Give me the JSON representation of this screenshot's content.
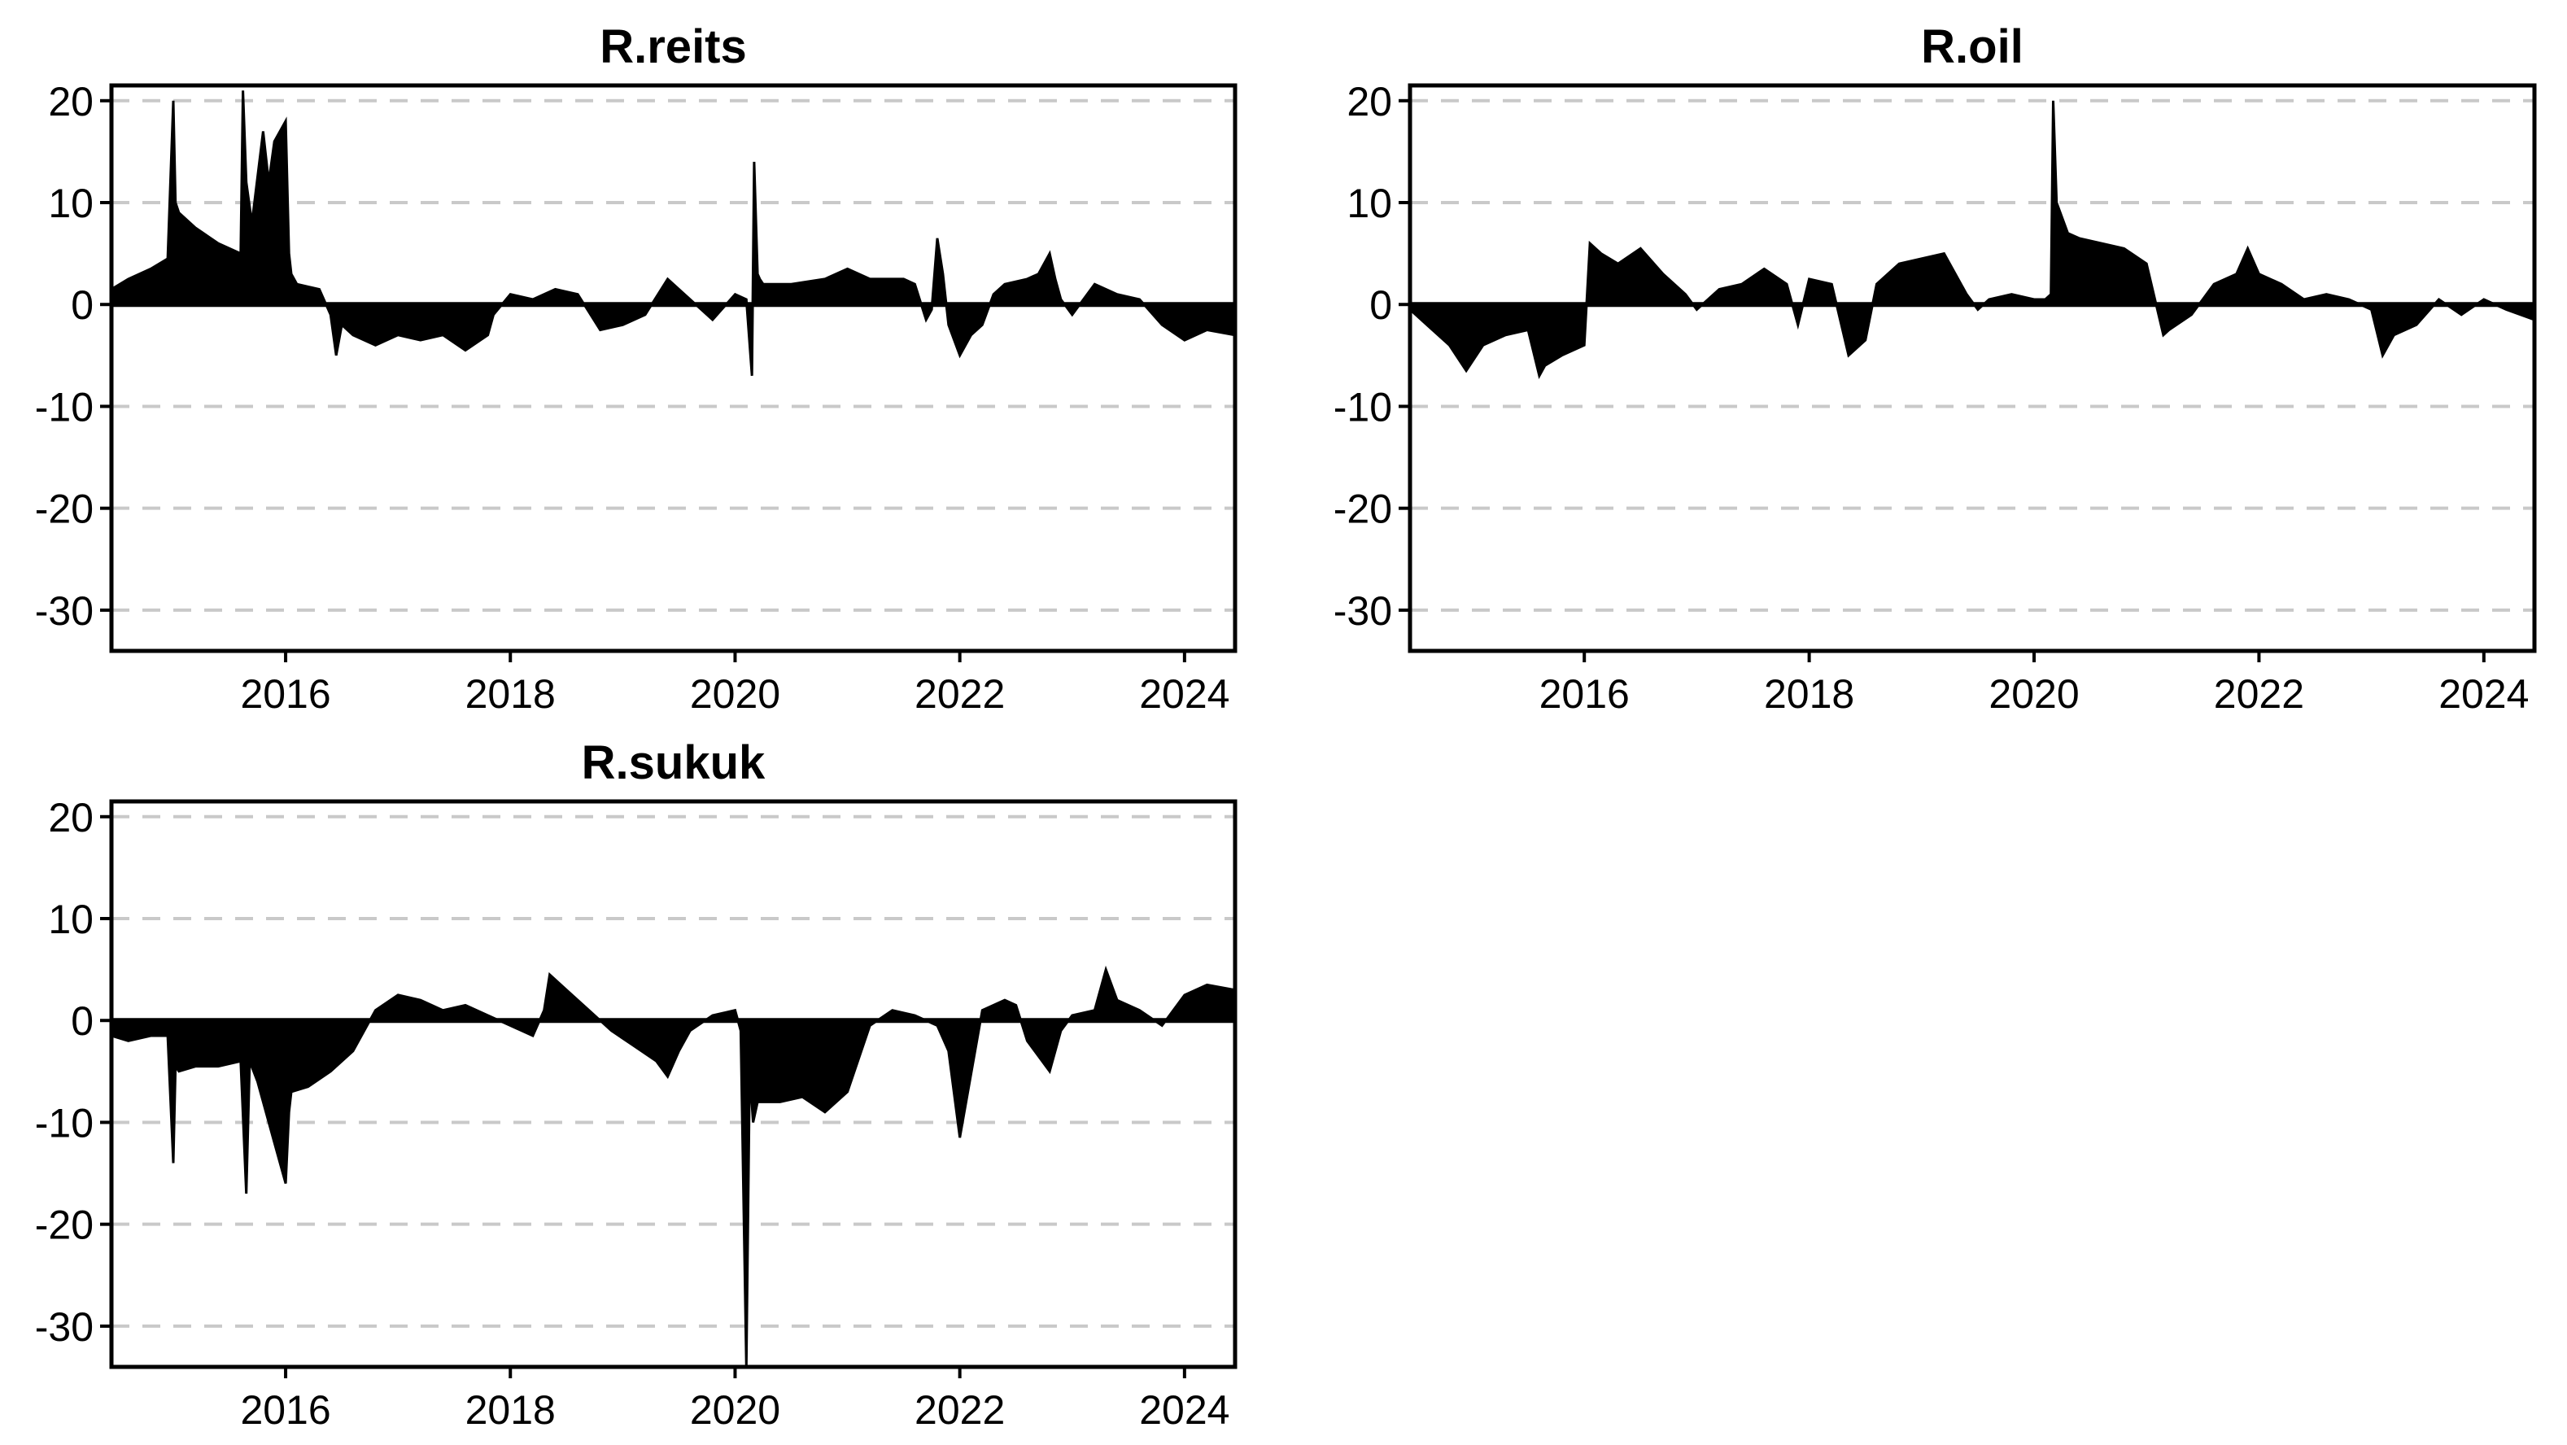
{
  "chart_data": [
    {
      "type": "area",
      "title": "R.reits",
      "xlabel": "",
      "ylabel": "",
      "xlim": [
        2014.45,
        2024.45
      ],
      "ylim": [
        -34,
        21.5
      ],
      "yticks": [
        20,
        10,
        0,
        -10,
        -20,
        -30
      ],
      "xticks": [
        2016,
        2018,
        2020,
        2022,
        2024
      ],
      "grid": true,
      "x": [
        2014.45,
        2014.6,
        2014.8,
        2014.95,
        2015.0,
        2015.02,
        2015.05,
        2015.2,
        2015.4,
        2015.6,
        2015.62,
        2015.65,
        2015.7,
        2015.8,
        2015.85,
        2015.9,
        2016.0,
        2016.03,
        2016.05,
        2016.1,
        2016.3,
        2016.4,
        2016.45,
        2016.5,
        2016.6,
        2016.8,
        2017.0,
        2017.2,
        2017.4,
        2017.6,
        2017.8,
        2017.85,
        2018.0,
        2018.2,
        2018.4,
        2018.6,
        2018.8,
        2019.0,
        2019.2,
        2019.4,
        2019.5,
        2019.6,
        2019.8,
        2020.0,
        2020.1,
        2020.15,
        2020.17,
        2020.2,
        2020.22,
        2020.25,
        2020.3,
        2020.5,
        2020.8,
        2021.0,
        2021.2,
        2021.5,
        2021.6,
        2021.7,
        2021.75,
        2021.8,
        2021.85,
        2021.9,
        2022.0,
        2022.1,
        2022.2,
        2022.3,
        2022.4,
        2022.6,
        2022.7,
        2022.8,
        2022.85,
        2022.9,
        2023.0,
        2023.2,
        2023.3,
        2023.4,
        2023.6,
        2023.8,
        2024.0,
        2024.2,
        2024.45
      ],
      "y": [
        1.5,
        2.5,
        3.5,
        4.5,
        20,
        10,
        9,
        7.5,
        6,
        5,
        21,
        12,
        8,
        17,
        12,
        16,
        18,
        5,
        3,
        2,
        1.5,
        -1,
        -5,
        -2,
        -3,
        -4,
        -3,
        -3.5,
        -3,
        -4.5,
        -3,
        -1,
        1,
        0.5,
        1.5,
        1,
        -2.5,
        -2,
        -1,
        2.5,
        1.5,
        0.5,
        -1.5,
        1,
        0.5,
        -7,
        14,
        3,
        2.5,
        2,
        2,
        2,
        2.5,
        3.5,
        2.5,
        2.5,
        2,
        -1.5,
        -0.5,
        6.5,
        3,
        -2,
        -5,
        -3,
        -2,
        1,
        2,
        2.5,
        3,
        5,
        2.5,
        0.5,
        -1,
        2,
        1.5,
        1,
        0.5,
        -2,
        -3.5,
        -2.5,
        -3
      ]
    },
    {
      "type": "area",
      "title": "R.oil",
      "xlabel": "",
      "ylabel": "",
      "xlim": [
        2014.45,
        2024.45
      ],
      "ylim": [
        -34,
        21.5
      ],
      "yticks": [
        20,
        10,
        0,
        -10,
        -20,
        -30
      ],
      "xticks": [
        2016,
        2018,
        2020,
        2022,
        2024
      ],
      "grid": true,
      "x": [
        2014.45,
        2014.6,
        2014.8,
        2014.95,
        2015.1,
        2015.3,
        2015.5,
        2015.6,
        2015.65,
        2015.8,
        2016.0,
        2016.05,
        2016.15,
        2016.3,
        2016.5,
        2016.7,
        2016.9,
        2017.0,
        2017.2,
        2017.4,
        2017.6,
        2017.8,
        2017.9,
        2018.0,
        2018.2,
        2018.35,
        2018.5,
        2018.6,
        2018.8,
        2019.0,
        2019.2,
        2019.4,
        2019.5,
        2019.6,
        2019.8,
        2020.0,
        2020.1,
        2020.15,
        2020.17,
        2020.2,
        2020.3,
        2020.4,
        2020.6,
        2020.8,
        2021.0,
        2021.15,
        2021.2,
        2021.4,
        2021.6,
        2021.8,
        2021.9,
        2022.0,
        2022.2,
        2022.4,
        2022.6,
        2022.8,
        2023.0,
        2023.1,
        2023.2,
        2023.4,
        2023.6,
        2023.8,
        2024.0,
        2024.2,
        2024.45
      ],
      "y": [
        -0.5,
        -2,
        -4,
        -6.5,
        -4,
        -3,
        -2.5,
        -7,
        -6,
        -5,
        -4,
        6,
        5,
        4,
        5.5,
        3,
        1,
        -0.5,
        1.5,
        2,
        3.5,
        2,
        -2,
        2.5,
        2,
        -5,
        -3.5,
        2,
        4,
        4.5,
        5,
        1,
        -0.5,
        0.5,
        1,
        0.5,
        0.5,
        1,
        20,
        10,
        7,
        6.5,
        6,
        5.5,
        4,
        -3,
        -2.5,
        -1,
        2,
        3,
        5.5,
        3,
        2,
        0.5,
        1,
        0.5,
        -0.5,
        -5,
        -3,
        -2,
        0.5,
        -1,
        0.5,
        -0.5,
        -1.5
      ]
    },
    {
      "type": "area",
      "title": "R.sukuk",
      "xlabel": "",
      "ylabel": "",
      "xlim": [
        2014.45,
        2024.45
      ],
      "ylim": [
        -34,
        21.5
      ],
      "yticks": [
        20,
        10,
        0,
        -10,
        -20,
        -30
      ],
      "xticks": [
        2016,
        2018,
        2020,
        2022,
        2024
      ],
      "grid": true,
      "x": [
        2014.45,
        2014.6,
        2014.8,
        2014.95,
        2015.0,
        2015.02,
        2015.05,
        2015.2,
        2015.4,
        2015.6,
        2015.65,
        2015.68,
        2015.75,
        2015.9,
        2016.0,
        2016.03,
        2016.05,
        2016.2,
        2016.4,
        2016.6,
        2016.8,
        2017.0,
        2017.2,
        2017.4,
        2017.6,
        2017.8,
        2018.0,
        2018.2,
        2018.3,
        2018.35,
        2018.5,
        2018.7,
        2018.9,
        2019.1,
        2019.3,
        2019.4,
        2019.5,
        2019.6,
        2019.8,
        2020.0,
        2020.05,
        2020.1,
        2020.13,
        2020.16,
        2020.2,
        2020.4,
        2020.6,
        2020.8,
        2021.0,
        2021.2,
        2021.4,
        2021.6,
        2021.8,
        2021.9,
        2022.0,
        2022.2,
        2022.4,
        2022.5,
        2022.6,
        2022.8,
        2022.9,
        2023.0,
        2023.2,
        2023.3,
        2023.4,
        2023.6,
        2023.8,
        2024.0,
        2024.2,
        2024.45
      ],
      "y": [
        -1.5,
        -2,
        -1.5,
        -1.5,
        -14,
        -4.5,
        -5,
        -4.5,
        -4.5,
        -4,
        -17,
        -4,
        -6,
        -12,
        -16,
        -9,
        -7,
        -6.5,
        -5,
        -3,
        1,
        2.5,
        2,
        1,
        1.5,
        0.5,
        -0.5,
        -1.5,
        1,
        4.5,
        3,
        1,
        -1,
        -2.5,
        -4,
        -5.5,
        -3,
        -1,
        0.5,
        1,
        -1,
        -34,
        -5,
        -10,
        -8,
        -8,
        -7.5,
        -9,
        -7,
        -0.5,
        1,
        0.5,
        -0.5,
        -3,
        -11.5,
        1,
        2,
        1.5,
        -2,
        -5,
        -1,
        0.5,
        1,
        5,
        2,
        1,
        -0.5,
        2.5,
        3.5,
        3
      ]
    }
  ]
}
